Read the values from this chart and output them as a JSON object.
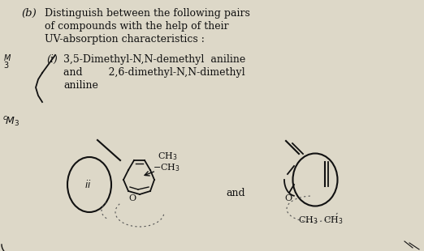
{
  "background_color": "#ddd8c8",
  "title_b": "(b)",
  "line1": "Distinguish between the following pairs",
  "line2": "of compounds with the help of their",
  "line3": "UV-absorption characteristics :",
  "item_label": "(i)",
  "item_text1": "3,5-Dimethyl-N,N-demethyl  aniline",
  "item_text2": "and        2,6-dimethyl-N,N-dimethyl",
  "item_text3": "aniline",
  "left_margin_top": "M3",
  "left_margin_lower": "cM3",
  "and_text": "and",
  "ii_label": "ii",
  "font_size_main": 9.0,
  "font_size_chem": 8.0,
  "text_color": "#111111"
}
